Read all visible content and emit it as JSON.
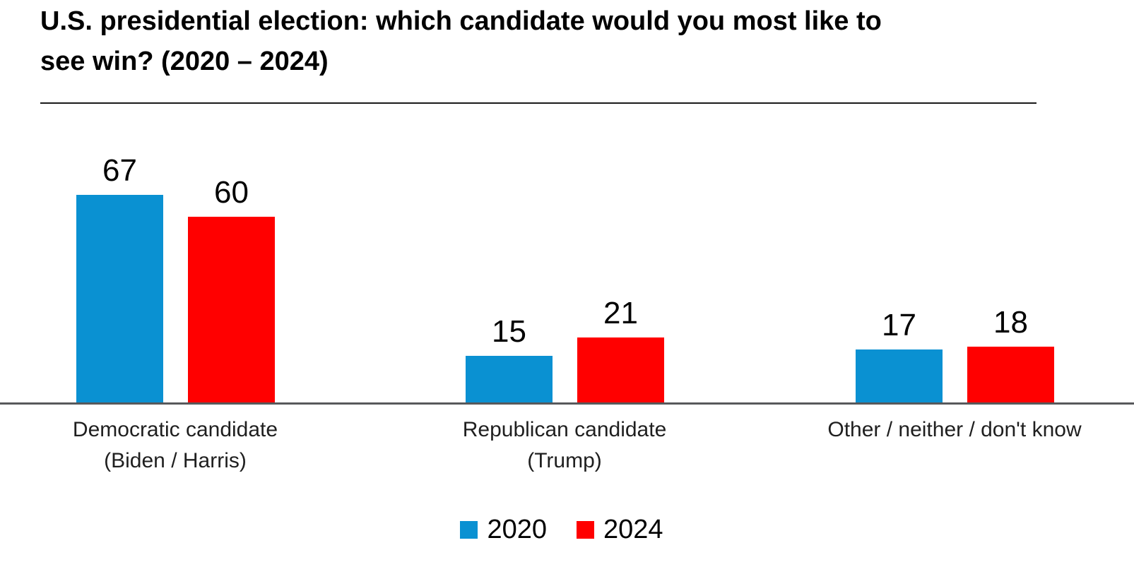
{
  "title": "U.S. presidential election: which candidate would you most like to\nsee win? (2020 – 2024)",
  "chart_data": {
    "type": "bar",
    "title": "U.S. presidential election: which candidate would you most like to see win? (2020 – 2024)",
    "categories": [
      "Democratic candidate\n(Biden / Harris)",
      "Republican candidate\n(Trump)",
      "Other / neither / don't know"
    ],
    "category_slugs": [
      "democratic-candidate",
      "republican-candidate",
      "other-neither-dont-know"
    ],
    "series": [
      {
        "name": "2020",
        "color": "#0a91d2",
        "values": [
          67,
          15,
          17
        ]
      },
      {
        "name": "2024",
        "color": "#ff0000",
        "values": [
          60,
          21,
          18
        ]
      }
    ],
    "xlabel": "",
    "ylabel": "",
    "ylim": [
      0,
      95
    ],
    "grid": false,
    "value_labels": true,
    "legend_position": "bottom",
    "axis_line_color": "#58595b",
    "divider_color": "#1a1a1a",
    "text_color": "#000000"
  }
}
